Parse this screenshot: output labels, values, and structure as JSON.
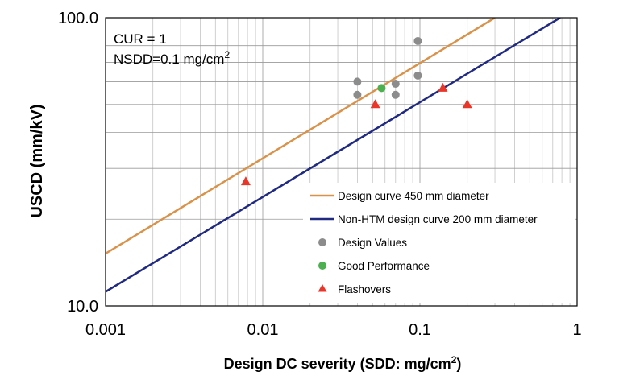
{
  "chart_data": {
    "type": "scatter",
    "xlabel": "Design DC severity (SDD: mg/cm",
    "xlabel_sup": "2",
    "xlabel_end": ")",
    "ylabel": "USCD (mm/kV)",
    "x_scale": "log",
    "y_scale": "log",
    "xlim": [
      0.001,
      1
    ],
    "ylim": [
      10,
      100
    ],
    "x_tick_labels": [
      "0.001",
      "0.01",
      "0.1",
      "1"
    ],
    "y_tick_labels": [
      "10.0",
      "100.0"
    ],
    "grid": true,
    "legend_position": "bottom-right",
    "annotations": {
      "line1": "CUR = 1",
      "line2": "NSDD=0.1 mg/cm",
      "line2_sup": "2"
    },
    "series": [
      {
        "name": "Design curve 450 mm diameter",
        "kind": "line",
        "color": "#d9924a",
        "x": [
          0.001,
          0.3
        ],
        "y": [
          15.2,
          100
        ]
      },
      {
        "name": "Non-HTM design curve 200 mm diameter",
        "kind": "line",
        "color": "#1f2a80",
        "x": [
          0.001,
          0.78
        ],
        "y": [
          11.2,
          100
        ]
      },
      {
        "name": "Design Values",
        "kind": "scatter",
        "marker": "circle",
        "color": "#8c8c8c",
        "x": [
          0.04,
          0.04,
          0.07,
          0.07,
          0.097,
          0.097
        ],
        "y": [
          60,
          54,
          59,
          54,
          83,
          63
        ]
      },
      {
        "name": "Good Performance",
        "kind": "scatter",
        "marker": "circle",
        "color": "#4caf50",
        "x": [
          0.057
        ],
        "y": [
          57
        ]
      },
      {
        "name": "Flashovers",
        "kind": "scatter",
        "marker": "triangle",
        "color": "#e8362a",
        "x": [
          0.0078,
          0.052,
          0.14,
          0.2
        ],
        "y": [
          27,
          50,
          57,
          50
        ]
      }
    ]
  }
}
